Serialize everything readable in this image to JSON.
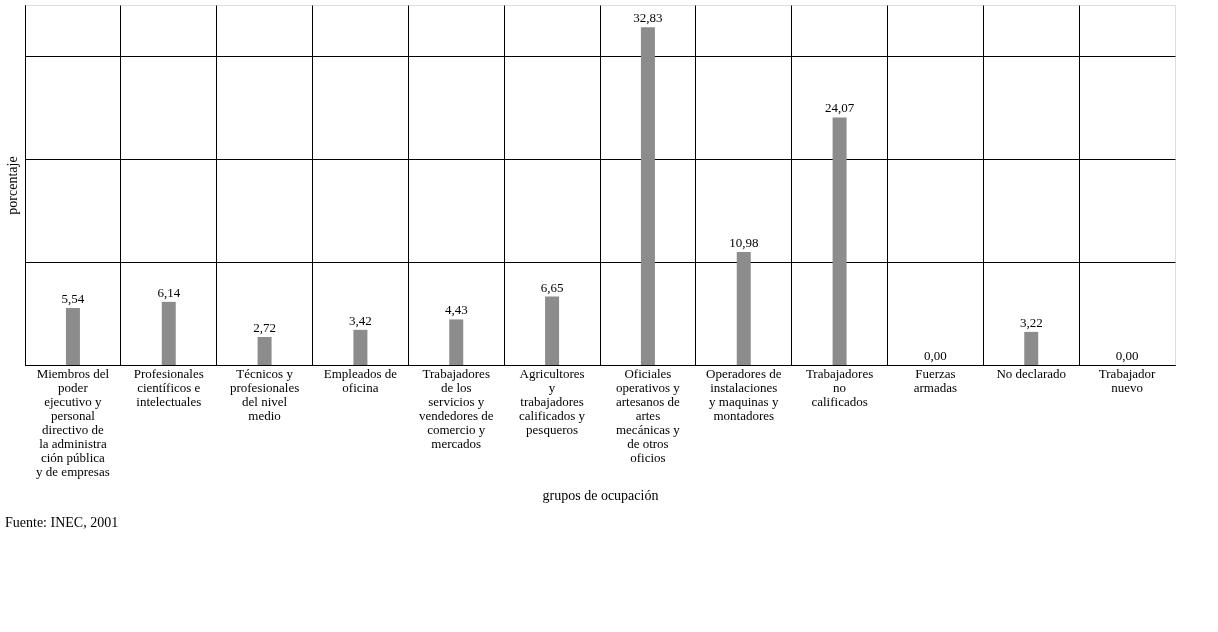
{
  "chart_data": {
    "type": "bar",
    "xlabel": "grupos de ocupación",
    "ylabel": "porcentaje",
    "categories": [
      "Miembros del poder ejecutivo y personal directivo de la administración pública y de empresas",
      "Profesionales científicos e intelectuales",
      "Técnicos y profesionales del nivel medio",
      "Empleados de oficina",
      "Trabajadores de los servicios y vendedores de comercio y mercados",
      "Agricultores y trabajadores calificados y pesqueros",
      "Oficiales operativos y artesanos de artes mecánicas y de otros oficios",
      "Operadores de instalaciones y maquinas y montadores",
      "Trabajadores no calificados",
      "Fuerzas armadas",
      "No declarado",
      "Trabajador nuevo"
    ],
    "values": [
      5.54,
      6.14,
      2.72,
      3.42,
      4.43,
      6.65,
      32.83,
      10.98,
      24.07,
      0.0,
      3.22,
      0.0
    ],
    "value_labels": [
      "5,54",
      "6,14",
      "2,72",
      "3,42",
      "4,43",
      "6,65",
      "32,83",
      "10,98",
      "24,07",
      "0,00",
      "3,22",
      "0,00"
    ],
    "color": "#8c8c8c",
    "tick_labels": "x",
    "grid": true,
    "annotations": [
      "Fuente: INEC, 2001"
    ]
  }
}
